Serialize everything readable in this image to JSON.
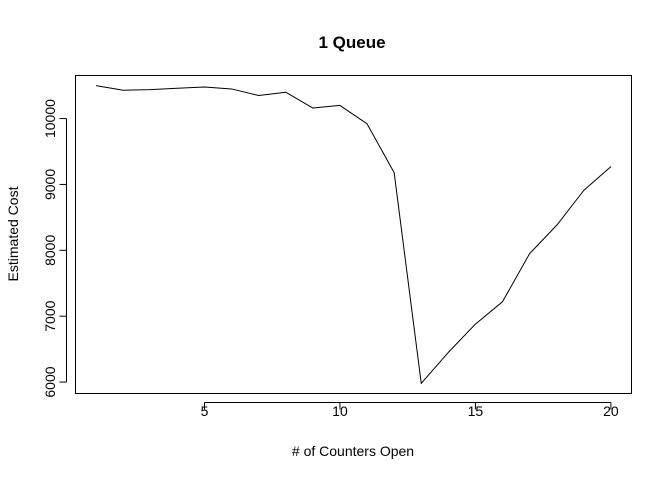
{
  "chart_data": {
    "type": "line",
    "title": "1 Queue",
    "xlabel": "# of Counters Open",
    "ylabel": "Estimated Cost",
    "x": [
      1,
      2,
      3,
      4,
      5,
      6,
      7,
      8,
      9,
      10,
      11,
      12,
      13,
      14,
      15,
      16,
      17,
      18,
      19,
      20
    ],
    "series": [
      {
        "values": [
          10500,
          10430,
          10440,
          10460,
          10480,
          10450,
          10350,
          10400,
          10160,
          10200,
          9920,
          9180,
          5980,
          6450,
          6880,
          7220,
          7950,
          8380,
          8910,
          9270
        ],
        "color": "#000000"
      }
    ],
    "xlim": [
      0.24,
      20.76
    ],
    "ylim": [
      5826,
      10654
    ],
    "x_ticks": [
      5,
      10,
      15,
      20
    ],
    "x_tick_labels": [
      "5",
      "10",
      "15",
      "20"
    ],
    "y_ticks": [
      6000,
      7000,
      8000,
      9000,
      10000
    ],
    "y_tick_labels": [
      "6000",
      "7000",
      "8000",
      "9000",
      "10000"
    ],
    "grid": false,
    "legend": "none"
  }
}
